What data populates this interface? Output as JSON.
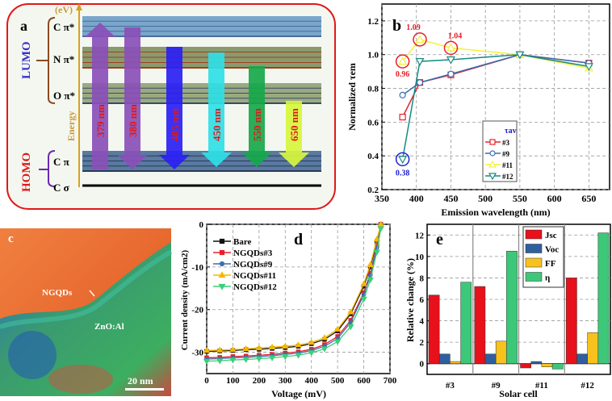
{
  "panel_a": {
    "label": "a",
    "energy_unit": "(eV)",
    "energy_label": "Energy",
    "lumo_label": "LUMO",
    "homo_label": "HOMO",
    "levels": [
      "C π*",
      "N π*",
      "O π*",
      "C π",
      "C σ"
    ],
    "transitions": [
      {
        "label": "379 nm",
        "color": "#8a4fb8",
        "direction": "up"
      },
      {
        "label": "380 nm",
        "color": "#8a4fb8",
        "direction": "down"
      },
      {
        "label": "405 nm",
        "color": "#2a1ff5",
        "direction": "down"
      },
      {
        "label": "450 nm",
        "color": "#2fe0e6",
        "direction": "down"
      },
      {
        "label": "550 nm",
        "color": "#16a84a",
        "direction": "down"
      },
      {
        "label": "650 nm",
        "color": "#d8f53c",
        "direction": "down"
      }
    ]
  },
  "panel_c": {
    "label": "c",
    "annotation": "NGQDs",
    "region_label": "ZnO:Al",
    "scale_bar": "20 nm"
  },
  "chart_data": [
    {
      "panel": "b",
      "type": "line",
      "xlabel": "Emission wavelength (nm)",
      "ylabel": "Normalized τem",
      "xlim": [
        350,
        680
      ],
      "ylim": [
        0.2,
        1.3
      ],
      "xticks": [
        350,
        400,
        450,
        500,
        550,
        600,
        650
      ],
      "yticks": [
        0.2,
        0.4,
        0.6,
        0.8,
        1.0,
        1.2
      ],
      "x": [
        380,
        405,
        450,
        550,
        650
      ],
      "legend_title": "τav",
      "legend_position": "bottom-center",
      "grid": true,
      "series": [
        {
          "name": "#3",
          "color": "#e8202a",
          "marker": "square",
          "values": [
            0.63,
            0.835,
            0.88,
            1.0,
            0.95
          ]
        },
        {
          "name": "#9",
          "color": "#3a6fb0",
          "marker": "circle",
          "values": [
            0.76,
            0.835,
            0.885,
            1.0,
            0.95
          ]
        },
        {
          "name": "#11",
          "color": "#f5f03a",
          "marker": "triangle-up",
          "values": [
            0.96,
            1.09,
            1.04,
            1.0,
            0.92
          ]
        },
        {
          "name": "#12",
          "color": "#178a80",
          "marker": "triangle-down",
          "values": [
            0.38,
            0.96,
            0.97,
            1.0,
            0.93
          ]
        }
      ],
      "annotations": [
        {
          "text": "1.09",
          "x": 405,
          "y": 1.09,
          "color": "#e8202a"
        },
        {
          "text": "1.04",
          "x": 450,
          "y": 1.04,
          "color": "#e8202a"
        },
        {
          "text": "0.96",
          "x": 380,
          "y": 0.96,
          "color": "#e8202a"
        },
        {
          "text": "0.38",
          "x": 380,
          "y": 0.38,
          "color": "#2020d0"
        }
      ]
    },
    {
      "panel": "d",
      "type": "line",
      "xlabel": "Voltage (mV)",
      "ylabel": "Current density (mA/cm2)",
      "xlim": [
        0,
        700
      ],
      "ylim": [
        -35,
        0
      ],
      "xticks": [
        0,
        100,
        200,
        300,
        400,
        500,
        600,
        700
      ],
      "yticks": [
        0,
        -10,
        -20,
        -30
      ],
      "x": [
        0,
        50,
        100,
        150,
        200,
        250,
        300,
        350,
        400,
        450,
        500,
        550,
        600,
        625,
        650,
        665
      ],
      "legend_position": "top-left",
      "grid": true,
      "series": [
        {
          "name": "Bare",
          "color": "#111111",
          "marker": "square",
          "values": [
            -29.8,
            -29.7,
            -29.6,
            -29.4,
            -29.3,
            -29.1,
            -28.9,
            -28.6,
            -28.0,
            -27.0,
            -25.0,
            -21.0,
            -14.5,
            -10,
            -4,
            0
          ]
        },
        {
          "name": "NGQDs#3",
          "color": "#e8202a",
          "marker": "square",
          "values": [
            -31.3,
            -31.2,
            -31.0,
            -30.9,
            -30.7,
            -30.5,
            -30.2,
            -29.9,
            -29.3,
            -28.2,
            -26.3,
            -22.5,
            -16,
            -11.5,
            -5,
            0
          ]
        },
        {
          "name": "NGQDs#9",
          "color": "#3a6fb0",
          "marker": "circle",
          "values": [
            -31.6,
            -31.5,
            -31.3,
            -31.2,
            -31.0,
            -30.8,
            -30.5,
            -30.2,
            -29.6,
            -28.6,
            -26.8,
            -23.0,
            -16.5,
            -12,
            -5.5,
            0
          ]
        },
        {
          "name": "NGQDs#11",
          "color": "#f5b800",
          "marker": "triangle-up",
          "values": [
            -29.6,
            -29.5,
            -29.4,
            -29.2,
            -29.0,
            -28.8,
            -28.6,
            -28.3,
            -27.7,
            -26.6,
            -24.6,
            -20.6,
            -14,
            -9.5,
            -3.5,
            0
          ]
        },
        {
          "name": "NGQDs#12",
          "color": "#3ccf7a",
          "marker": "triangle-down",
          "values": [
            -32.1,
            -32.0,
            -31.8,
            -31.7,
            -31.5,
            -31.3,
            -31.0,
            -30.7,
            -30.1,
            -29.2,
            -27.5,
            -24,
            -17.5,
            -13,
            -6.5,
            -1
          ]
        }
      ]
    },
    {
      "panel": "e",
      "type": "bar",
      "xlabel": "Solar cell",
      "ylabel": "Relative change (%)",
      "ylim": [
        -1,
        13
      ],
      "yticks": [
        0,
        2,
        4,
        6,
        8,
        10,
        12
      ],
      "categories": [
        "#3",
        "#9",
        "#11",
        "#12"
      ],
      "legend_position": "top-center",
      "grid": true,
      "series": [
        {
          "name": "Jsc",
          "color": "#e8101a",
          "values": [
            6.4,
            7.2,
            -0.4,
            8.0
          ]
        },
        {
          "name": "Voc",
          "color": "#2f5f9e",
          "values": [
            0.9,
            0.9,
            0.2,
            0.9
          ]
        },
        {
          "name": "FF",
          "color": "#f8c21e",
          "values": [
            0.2,
            2.1,
            -0.3,
            2.9
          ]
        },
        {
          "name": "η",
          "color": "#3cc878",
          "values": [
            7.6,
            10.5,
            -0.5,
            12.2
          ]
        }
      ]
    }
  ]
}
